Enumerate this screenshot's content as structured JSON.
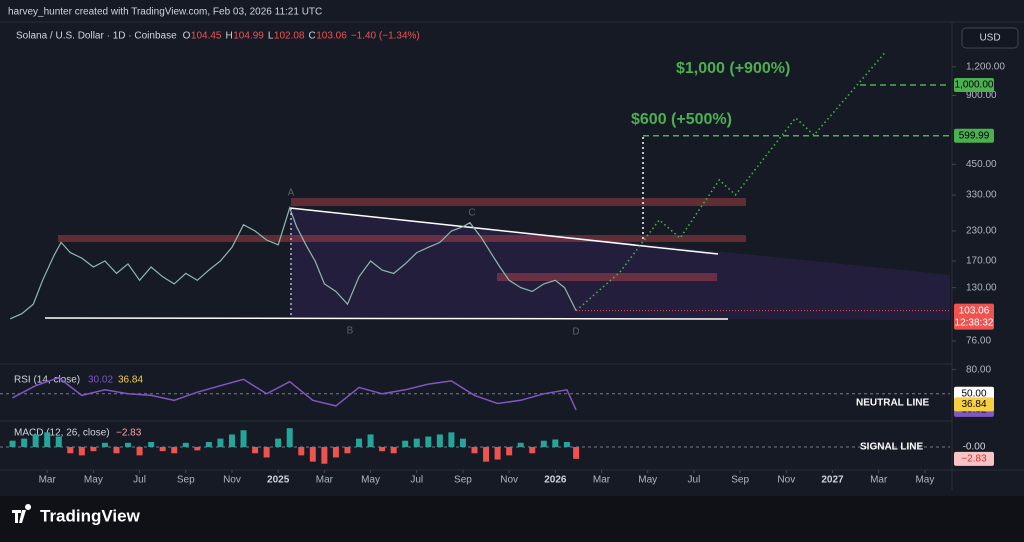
{
  "header": {
    "attribution": "harvey_hunter created with TradingView.com, Feb 03, 2026 11:21 UTC"
  },
  "legend": {
    "symbol": "Solana / U.S. Dollar · 1D · Coinbase",
    "open_label": "O",
    "open": "104.45",
    "high_label": "H",
    "high": "104.99",
    "low_label": "L",
    "low": "102.08",
    "close_label": "C",
    "close": "103.06",
    "change": "−1.40 (−1.34%)"
  },
  "currency_button": "USD",
  "pattern_points": [
    "A",
    "B",
    "C",
    "D"
  ],
  "brand": "TradingView",
  "chart_data": [
    {
      "type": "line",
      "log_scale": true,
      "xlim": [
        0,
        41
      ],
      "ylim": [
        64,
        1775
      ],
      "xticks": [
        {
          "value": 2,
          "label": "Mar"
        },
        {
          "value": 4,
          "label": "May"
        },
        {
          "value": 6,
          "label": "Jul"
        },
        {
          "value": 8,
          "label": "Sep"
        },
        {
          "value": 10,
          "label": "Nov"
        },
        {
          "value": 12,
          "label": "2025"
        },
        {
          "value": 14,
          "label": "Mar"
        },
        {
          "value": 16,
          "label": "May"
        },
        {
          "value": 18,
          "label": "Jul"
        },
        {
          "value": 20,
          "label": "Sep"
        },
        {
          "value": 22,
          "label": "Nov"
        },
        {
          "value": 24,
          "label": "2026"
        },
        {
          "value": 26,
          "label": "Mar"
        },
        {
          "value": 28,
          "label": "May"
        },
        {
          "value": 30,
          "label": "Jul"
        },
        {
          "value": 32,
          "label": "Sep"
        },
        {
          "value": 34,
          "label": "Nov"
        },
        {
          "value": 36,
          "label": "2027"
        },
        {
          "value": 38,
          "label": "Mar"
        },
        {
          "value": 40,
          "label": "May"
        }
      ],
      "yticks": [
        {
          "value": 1200,
          "label": "1,200.00"
        },
        {
          "value": 900,
          "label": "900.00"
        },
        {
          "value": 450,
          "label": "450.00"
        },
        {
          "value": 330,
          "label": "330.00"
        },
        {
          "value": 230,
          "label": "230.00"
        },
        {
          "value": 170,
          "label": "170.00"
        },
        {
          "value": 130,
          "label": "130.00"
        },
        {
          "value": 76,
          "label": "76.00"
        }
      ],
      "series": [
        {
          "color": "#8fb8b0",
          "x": [
            0.4,
            0.9,
            1.4,
            1.8,
            2.3,
            2.6,
            3.0,
            3.5,
            4.0,
            4.5,
            5.0,
            5.5,
            6.0,
            6.5,
            7.0,
            7.5,
            8.0,
            8.5,
            9.0,
            9.5,
            10.0,
            10.5,
            11.0,
            11.5,
            12.0,
            12.5,
            12.8,
            13.2,
            13.6,
            14.0,
            14.5,
            15.0,
            15.5,
            16.0,
            16.5,
            17.0,
            17.5,
            18.0,
            18.5,
            19.0,
            19.5,
            20.0,
            20.3,
            20.8,
            21.2,
            21.6,
            22.0,
            22.5,
            23.0,
            23.5,
            24.0,
            24.4,
            24.9
          ],
          "values": [
            95,
            100,
            110,
            140,
            180,
            205,
            185,
            175,
            160,
            170,
            150,
            165,
            140,
            160,
            145,
            135,
            150,
            140,
            155,
            170,
            195,
            245,
            230,
            210,
            200,
            290,
            240,
            200,
            170,
            135,
            125,
            110,
            145,
            170,
            155,
            150,
            165,
            185,
            195,
            205,
            230,
            240,
            250,
            215,
            185,
            160,
            140,
            130,
            125,
            135,
            140,
            130,
            103.06
          ]
        },
        {
          "color": "#4caf50",
          "x": [
            24.9,
            26.8,
            28.5,
            29.4,
            31.1,
            31.8,
            34.4,
            35.2,
            38.3
          ],
          "values": [
            103.06,
            152,
            257,
            214,
            384,
            331,
            718,
            604,
            1396
          ]
        }
      ],
      "targets": [
        {
          "value": 1000,
          "label": "1,000.00",
          "text": "$1,000 (+900%)"
        },
        {
          "value": 599.99,
          "label": "599.99",
          "text": "$600 (+500%)"
        }
      ],
      "last_price": {
        "value": 103.06,
        "label": "103.06",
        "countdown": "12:38:32"
      }
    },
    {
      "type": "line",
      "title": "RSI (14, close)",
      "xlim": [
        0,
        41
      ],
      "ylim": [
        20,
        82
      ],
      "color": "#7e57c2",
      "yticks": [
        {
          "value": 80,
          "label": "80.00"
        }
      ],
      "x": [
        0.5,
        1.5,
        2.5,
        3.5,
        4.5,
        5.5,
        6.5,
        7.5,
        8.5,
        9.5,
        10.5,
        11.5,
        12.5,
        13.5,
        14.5,
        15.5,
        16.5,
        17.5,
        18.5,
        19.5,
        20.5,
        21.5,
        22.5,
        23.5,
        24.5,
        24.9
      ],
      "values": [
        45,
        60,
        70,
        48,
        55,
        50,
        48,
        42,
        52,
        60,
        68,
        50,
        65,
        42,
        35,
        58,
        50,
        55,
        62,
        66,
        48,
        38,
        42,
        50,
        55,
        30.02
      ],
      "neutral": {
        "value": 50,
        "label": "50.00",
        "text": "NEUTRAL LINE"
      },
      "last_values": [
        {
          "value": 30.02,
          "label": "30.02",
          "color": "#7e57c2"
        },
        {
          "value": 36.84,
          "label": "36.84",
          "color": "#f5d142"
        }
      ]
    },
    {
      "type": "bar",
      "title": "MACD (12, 26, close)",
      "xlim": [
        0,
        41
      ],
      "ylim": [
        -5.5,
        5.5
      ],
      "up_color": "#26a69a",
      "down_color": "#ef5350",
      "x": [
        0.5,
        1.0,
        1.5,
        2.0,
        2.5,
        3.0,
        3.5,
        4.0,
        4.5,
        5.0,
        5.5,
        6.0,
        6.5,
        7.0,
        7.5,
        8.0,
        8.5,
        9.0,
        9.5,
        10.0,
        10.5,
        11.0,
        11.5,
        12.0,
        12.5,
        13.0,
        13.5,
        14.0,
        14.5,
        15.0,
        15.5,
        16.0,
        16.5,
        17.0,
        17.5,
        18.0,
        18.5,
        19.0,
        19.5,
        20.0,
        20.5,
        21.0,
        21.5,
        22.0,
        22.5,
        23.0,
        23.5,
        24.0,
        24.5,
        24.9
      ],
      "values": [
        1.5,
        2,
        3,
        3.5,
        2.5,
        -1.5,
        -2,
        -1,
        1,
        -1.5,
        1,
        -2,
        1.2,
        -1,
        -1.5,
        1,
        -0.8,
        1.2,
        2,
        3,
        4,
        -1.5,
        -2.5,
        2,
        4.5,
        -2,
        -3.5,
        -4,
        -2.5,
        -1.5,
        2,
        3,
        -1,
        -1.5,
        1.5,
        2,
        2.5,
        3,
        3.5,
        2,
        -1.5,
        -3.5,
        -3,
        -2,
        1,
        -1.5,
        1.5,
        1.8,
        1.2,
        -2.83
      ],
      "signal": {
        "value": 0,
        "label": "-0.00",
        "text": "SIGNAL LINE"
      },
      "last": {
        "value": -2.83,
        "label": "−2.83"
      }
    }
  ]
}
